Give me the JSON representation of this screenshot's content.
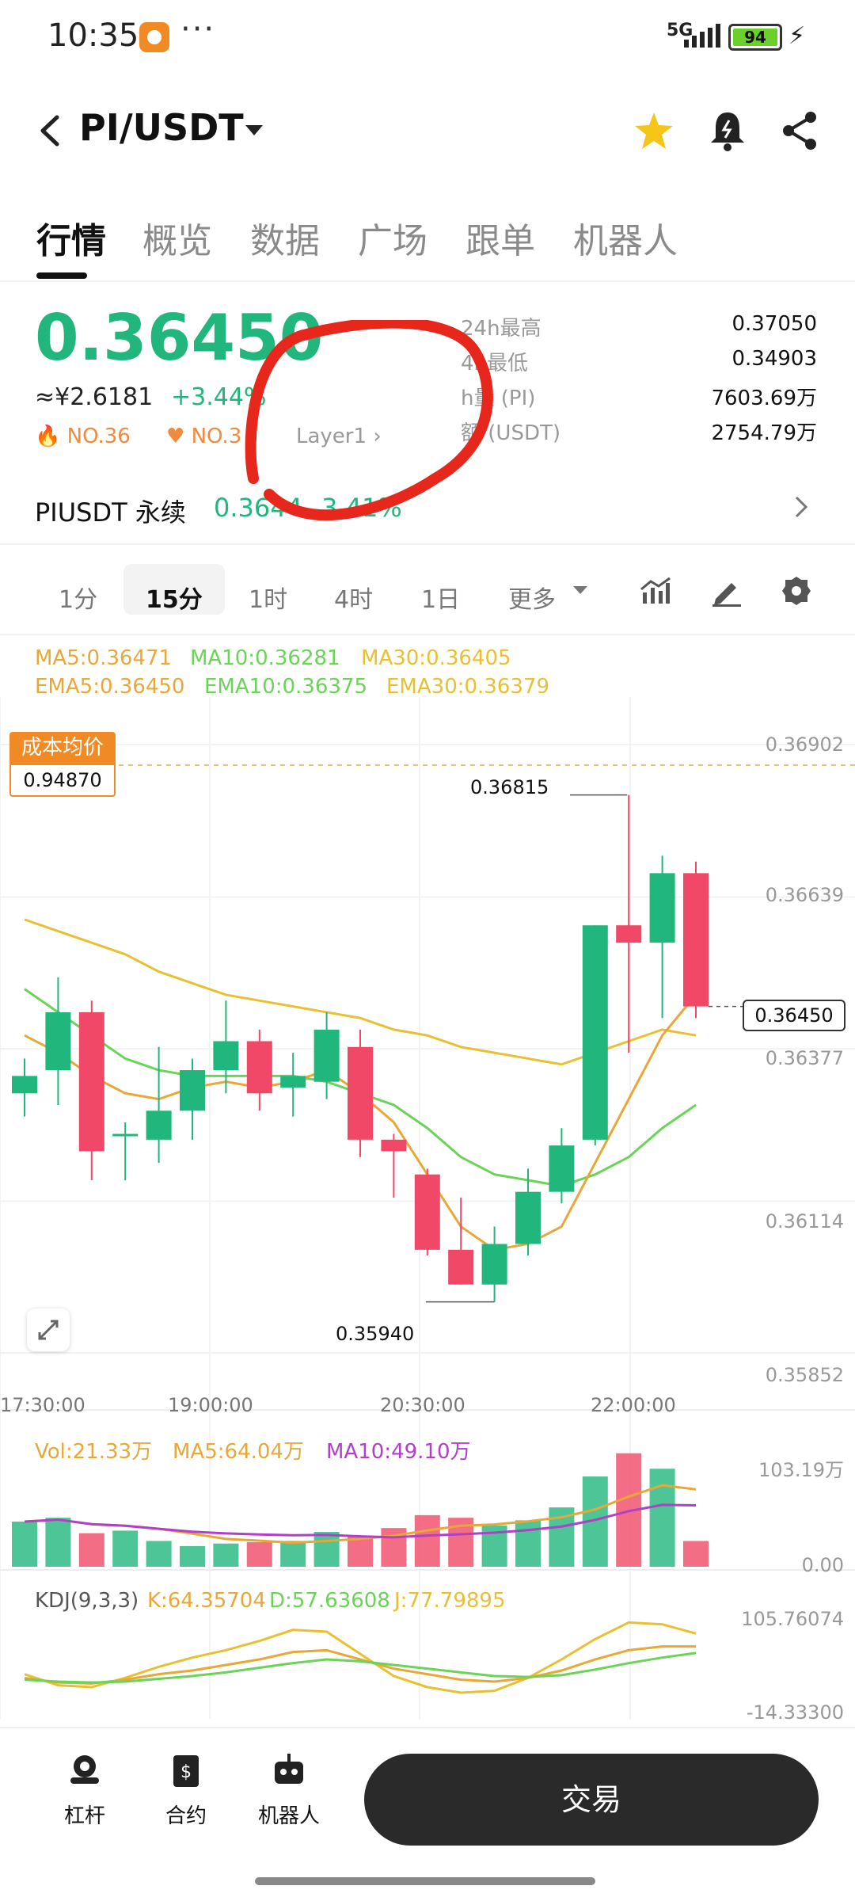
{
  "status_bar": {
    "time": "10:35",
    "dots": "···",
    "network": "5G",
    "battery": "94"
  },
  "header": {
    "pair": "PI/USDT"
  },
  "tabs": [
    "行情",
    "概览",
    "数据",
    "广场",
    "跟单",
    "机器人"
  ],
  "price": {
    "last": "0.36450",
    "cny": "≈¥2.6181",
    "change": "+3.44%",
    "tags": [
      "NO.36",
      "NO.3",
      "Layer1"
    ]
  },
  "stats": [
    {
      "label": "24h最高",
      "value": "0.37050"
    },
    {
      "label": "4h最低",
      "value": "0.34903"
    },
    {
      "label": "h量 (PI)",
      "value": "7603.69万"
    },
    {
      "label": "额 (USDT)",
      "value": "2754.79万"
    }
  ],
  "perpetual": {
    "label": "PIUSDT 永续",
    "price": "0.3644",
    "change": "3.41%"
  },
  "timeframes": [
    "1分",
    "15分",
    "1时",
    "4时",
    "1日",
    "更多"
  ],
  "ma_legend": {
    "row1": [
      "MA5:0.36471",
      "MA10:0.36281",
      "MA30:0.36405"
    ],
    "row2": [
      "EMA5:0.36450",
      "EMA10:0.36375",
      "EMA30:0.36379"
    ]
  },
  "colors": {
    "up": "#21b77c",
    "down": "#f04866",
    "ma5": "#e8a838",
    "ma10": "#6ad458",
    "ma30": "#e8c032",
    "vol_ma10": "#b040c8"
  },
  "cost": {
    "label": "成本均价",
    "value": "0.94870"
  },
  "chart_data": {
    "type": "candlestick",
    "price_axis": [
      "0.36902",
      "0.36639",
      "0.36377",
      "0.36114",
      "0.35852"
    ],
    "time_axis": [
      "17:30:00",
      "19:00:00",
      "20:30:00",
      "22:00:00"
    ],
    "current_price": "0.36450",
    "high_label": "0.36815",
    "low_label": "0.35940",
    "candles": [
      {
        "o": 0.363,
        "h": 0.3636,
        "l": 0.3626,
        "c": 0.3633
      },
      {
        "o": 0.3634,
        "h": 0.365,
        "l": 0.3628,
        "c": 0.3644
      },
      {
        "o": 0.3644,
        "h": 0.3646,
        "l": 0.3615,
        "c": 0.362
      },
      {
        "o": 0.3623,
        "h": 0.3625,
        "l": 0.3615,
        "c": 0.3623
      },
      {
        "o": 0.3622,
        "h": 0.3638,
        "l": 0.3618,
        "c": 0.3627
      },
      {
        "o": 0.3627,
        "h": 0.3636,
        "l": 0.3622,
        "c": 0.3634
      },
      {
        "o": 0.3634,
        "h": 0.3646,
        "l": 0.363,
        "c": 0.3639
      },
      {
        "o": 0.3639,
        "h": 0.3641,
        "l": 0.3627,
        "c": 0.363
      },
      {
        "o": 0.3631,
        "h": 0.3637,
        "l": 0.3626,
        "c": 0.3633
      },
      {
        "o": 0.3632,
        "h": 0.3644,
        "l": 0.3629,
        "c": 0.3641
      },
      {
        "o": 0.3638,
        "h": 0.3641,
        "l": 0.3619,
        "c": 0.3622
      },
      {
        "o": 0.3622,
        "h": 0.3623,
        "l": 0.3612,
        "c": 0.362
      },
      {
        "o": 0.3616,
        "h": 0.3617,
        "l": 0.3602,
        "c": 0.3603
      },
      {
        "o": 0.3603,
        "h": 0.3612,
        "l": 0.3597,
        "c": 0.3597
      },
      {
        "o": 0.3597,
        "h": 0.3607,
        "l": 0.3594,
        "c": 0.3604
      },
      {
        "o": 0.3604,
        "h": 0.3617,
        "l": 0.3602,
        "c": 0.3613
      },
      {
        "o": 0.3613,
        "h": 0.3624,
        "l": 0.3611,
        "c": 0.3621
      },
      {
        "o": 0.3622,
        "h": 0.3659,
        "l": 0.3621,
        "c": 0.3659
      },
      {
        "o": 0.3659,
        "h": 0.36815,
        "l": 0.3637,
        "c": 0.3656
      },
      {
        "o": 0.3656,
        "h": 0.3671,
        "l": 0.3643,
        "c": 0.3668
      },
      {
        "o": 0.3668,
        "h": 0.367,
        "l": 0.3643,
        "c": 0.3645
      }
    ],
    "ma_lines": {
      "ma5": [
        0.364,
        0.3637,
        0.3633,
        0.363,
        0.3629,
        0.3631,
        0.3632,
        0.3631,
        0.3632,
        0.3634,
        0.363,
        0.3625,
        0.3616,
        0.3607,
        0.3603,
        0.3604,
        0.3607,
        0.3618,
        0.3629,
        0.364,
        0.3647
      ],
      "ma10": [
        0.3648,
        0.3644,
        0.364,
        0.3636,
        0.3634,
        0.3633,
        0.3633,
        0.3633,
        0.3633,
        0.3632,
        0.363,
        0.3628,
        0.3624,
        0.3619,
        0.3616,
        0.3615,
        0.3614,
        0.3616,
        0.3619,
        0.3624,
        0.3628
      ],
      "ma30": [
        0.366,
        0.3658,
        0.3656,
        0.3654,
        0.3651,
        0.3649,
        0.3647,
        0.3646,
        0.3645,
        0.3644,
        0.3643,
        0.3641,
        0.364,
        0.3638,
        0.3637,
        0.3636,
        0.3635,
        0.3637,
        0.3639,
        0.3641,
        0.364
      ]
    },
    "volume": {
      "label": "Vol:21.33万",
      "ma5_label": "MA5:64.04万",
      "ma10_label": "MA10:49.10万",
      "axis_max": "103.19万",
      "axis_min": "0.00",
      "values": [
        35,
        38,
        26,
        28,
        20,
        16,
        18,
        19,
        20,
        27,
        24,
        30,
        40,
        38,
        32,
        36,
        46,
        70,
        88,
        76,
        20
      ]
    },
    "kdj": {
      "label": "KDJ(9,3,3)",
      "k_label": "K:64.35704",
      "d_label": "D:57.63608",
      "j_label": "J:77.79895",
      "axis_max": "105.76074",
      "axis_min": "-14.33300",
      "k": [
        30,
        25,
        24,
        28,
        34,
        38,
        44,
        50,
        58,
        60,
        50,
        40,
        34,
        28,
        26,
        30,
        38,
        50,
        60,
        64,
        64
      ],
      "d": [
        28,
        26,
        25,
        26,
        29,
        32,
        36,
        41,
        46,
        50,
        48,
        44,
        40,
        36,
        32,
        31,
        33,
        39,
        46,
        52,
        57
      ],
      "j": [
        34,
        22,
        20,
        30,
        42,
        52,
        60,
        70,
        82,
        80,
        56,
        32,
        20,
        14,
        16,
        30,
        50,
        72,
        90,
        88,
        78
      ]
    }
  },
  "bottom_nav": [
    "杠杆",
    "合约",
    "机器人"
  ],
  "trade_button": "交易"
}
